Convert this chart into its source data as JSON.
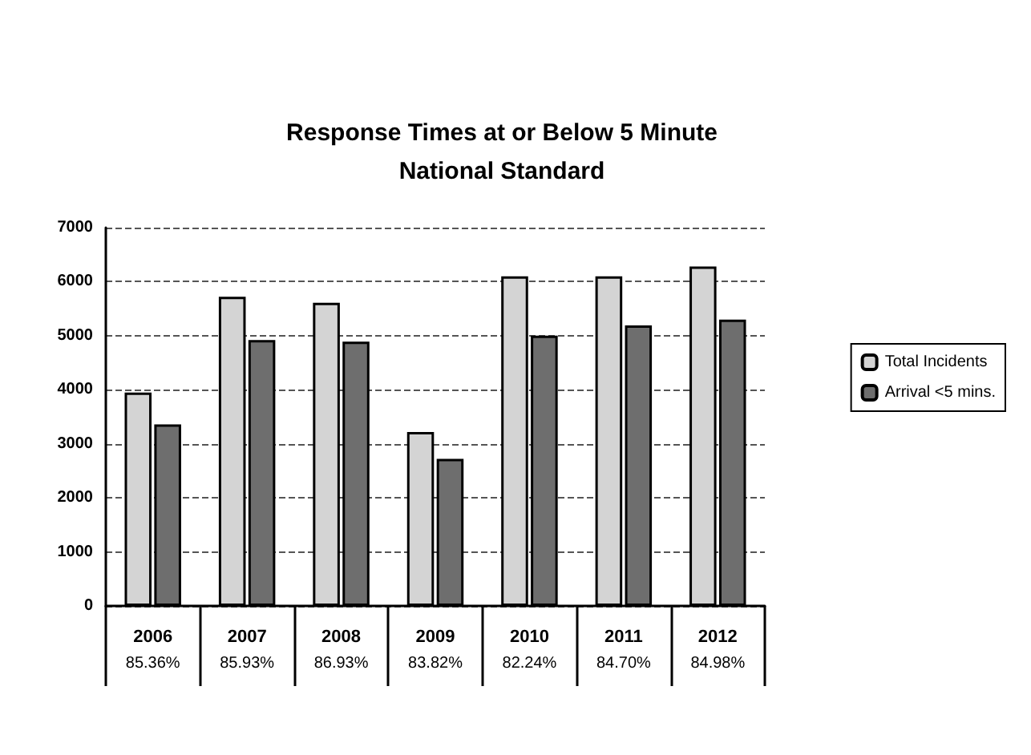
{
  "chart_data": {
    "type": "bar",
    "title": "Response Times at or Below 5 Minute\nNational Standard",
    "categories": [
      "2006",
      "2007",
      "2008",
      "2009",
      "2010",
      "2011",
      "2012"
    ],
    "series": [
      {
        "name": "Total Incidents",
        "color": "#d4d4d4",
        "values": [
          3950,
          5720,
          5610,
          3220,
          6100,
          6100,
          6280
        ]
      },
      {
        "name": "Arrival <5 mins.",
        "color": "#6e6e6e",
        "values": [
          3360,
          4920,
          4890,
          2720,
          5000,
          5190,
          5300
        ]
      }
    ],
    "ylim": [
      0,
      7000
    ],
    "yticks": [
      0,
      1000,
      2000,
      3000,
      4000,
      5000,
      6000,
      7000
    ],
    "grid": "y",
    "legend": "right",
    "annotations": [
      "85.36%",
      "85.93%",
      "86.93%",
      "83.82%",
      "82.24%",
      "84.70%",
      "84.98%"
    ]
  }
}
